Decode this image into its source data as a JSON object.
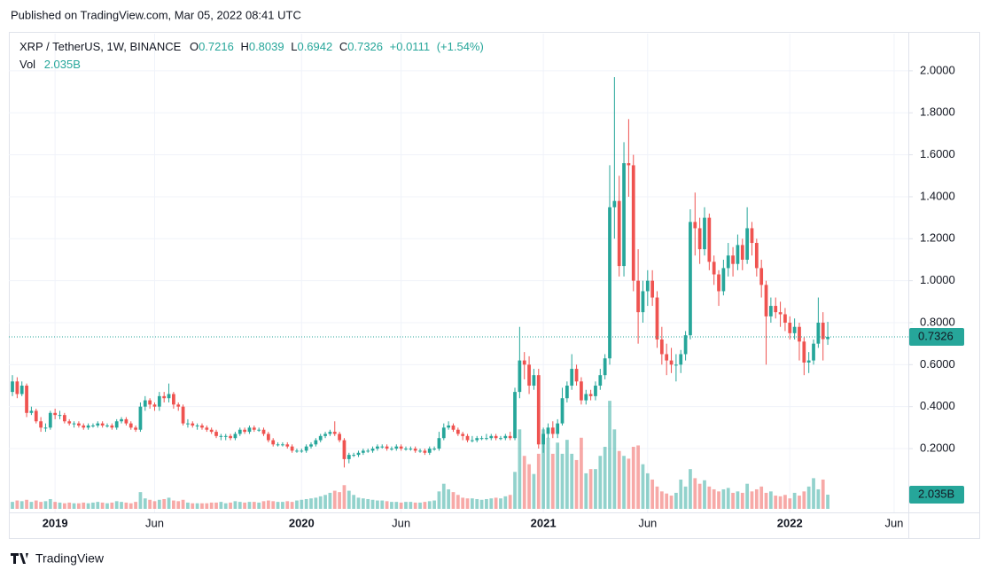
{
  "chart_data": {
    "type": "candlestick",
    "published": "Published on TradingView.com, Mar 05, 2022 08:41 UTC",
    "title": "XRP / TetherUS, 1W, BINANCE",
    "legend_labels": {
      "open": "O",
      "high": "H",
      "low": "L",
      "close": "C",
      "volume": "Vol"
    },
    "change": {
      "value": 0.0111,
      "label": "+0.0111"
    },
    "change_pct": {
      "value": 1.54,
      "label": "(+1.54%)"
    },
    "volume_label": "2.035B",
    "brand": "TradingView",
    "up_color": "#26a69a",
    "down_color": "#ef5350",
    "grid": true,
    "xlim": [
      -0.75,
      189
    ],
    "xticks": [
      {
        "value": 9,
        "label": "2019"
      },
      {
        "value": 30,
        "label": "Jun"
      },
      {
        "value": 61,
        "label": "2020"
      },
      {
        "value": 82,
        "label": "Jun"
      },
      {
        "value": 112,
        "label": "2021"
      },
      {
        "value": 134,
        "label": "Jun"
      },
      {
        "value": 164,
        "label": "2022"
      },
      {
        "value": 186,
        "label": "Jun"
      }
    ],
    "ylim": [
      -0.104,
      2.177
    ],
    "yticks": [
      {
        "value": 0.2,
        "label": "0.2000"
      },
      {
        "value": 0.4,
        "label": "0.4000"
      },
      {
        "value": 0.6,
        "label": "0.6000"
      },
      {
        "value": 0.8,
        "label": "0.8000"
      },
      {
        "value": 1,
        "label": "1.0000"
      },
      {
        "value": 1.2,
        "label": "1.2000"
      },
      {
        "value": 1.4,
        "label": "1.4000"
      },
      {
        "value": 1.6,
        "label": "1.6000"
      },
      {
        "value": 1.8,
        "label": "1.8000"
      },
      {
        "value": 2,
        "label": "2.0000"
      }
    ],
    "vol_ylim": [
      0,
      22
    ],
    "open": [
      0.47,
      0.52,
      0.46,
      0.5,
      0.37,
      0.38,
      0.33,
      0.3,
      0.3,
      0.37,
      0.36,
      0.36,
      0.33,
      0.32,
      0.32,
      0.31,
      0.3,
      0.31,
      0.31,
      0.32,
      0.31,
      0.31,
      0.3,
      0.33,
      0.34,
      0.32,
      0.3,
      0.29,
      0.4,
      0.43,
      0.41,
      0.4,
      0.45,
      0.44,
      0.46,
      0.41,
      0.4,
      0.32,
      0.32,
      0.31,
      0.31,
      0.3,
      0.29,
      0.28,
      0.26,
      0.26,
      0.26,
      0.25,
      0.27,
      0.29,
      0.28,
      0.3,
      0.29,
      0.29,
      0.27,
      0.24,
      0.22,
      0.22,
      0.22,
      0.21,
      0.19,
      0.19,
      0.19,
      0.21,
      0.22,
      0.24,
      0.26,
      0.27,
      0.28,
      0.27,
      0.24,
      0.15,
      0.17,
      0.17,
      0.18,
      0.19,
      0.19,
      0.2,
      0.21,
      0.21,
      0.2,
      0.2,
      0.21,
      0.2,
      0.2,
      0.2,
      0.19,
      0.19,
      0.18,
      0.2,
      0.2,
      0.25,
      0.3,
      0.31,
      0.29,
      0.27,
      0.26,
      0.24,
      0.24,
      0.25,
      0.25,
      0.25,
      0.26,
      0.25,
      0.25,
      0.26,
      0.25,
      0.47,
      0.62,
      0.6,
      0.5,
      0.55,
      0.22,
      0.27,
      0.3,
      0.27,
      0.32,
      0.44,
      0.5,
      0.58,
      0.52,
      0.43,
      0.46,
      0.45,
      0.5,
      0.55,
      0.63,
      1.35,
      1.38,
      1.07,
      1.56,
      1.55,
      1.0,
      0.85,
      0.95,
      1.0,
      0.92,
      0.72,
      0.65,
      0.62,
      0.6,
      0.6,
      0.65,
      0.74,
      1.28,
      1.25,
      1.15,
      1.3,
      1.09,
      1.03,
      0.95,
      1.06,
      1.12,
      1.08,
      1.17,
      1.1,
      1.25,
      1.18,
      1.06,
      0.98,
      0.83,
      0.88,
      0.85,
      0.84,
      0.8,
      0.75,
      0.78,
      0.71,
      0.61,
      0.62,
      0.7,
      0.8,
      0.7216
    ],
    "high": [
      0.55,
      0.54,
      0.52,
      0.51,
      0.4,
      0.39,
      0.35,
      0.32,
      0.38,
      0.39,
      0.38,
      0.37,
      0.34,
      0.33,
      0.33,
      0.32,
      0.32,
      0.32,
      0.33,
      0.33,
      0.32,
      0.32,
      0.34,
      0.35,
      0.35,
      0.33,
      0.31,
      0.42,
      0.45,
      0.44,
      0.42,
      0.47,
      0.47,
      0.51,
      0.47,
      0.42,
      0.41,
      0.34,
      0.33,
      0.32,
      0.32,
      0.31,
      0.3,
      0.29,
      0.27,
      0.27,
      0.27,
      0.28,
      0.3,
      0.3,
      0.31,
      0.31,
      0.3,
      0.3,
      0.28,
      0.25,
      0.23,
      0.23,
      0.23,
      0.22,
      0.2,
      0.2,
      0.22,
      0.23,
      0.25,
      0.27,
      0.28,
      0.29,
      0.33,
      0.28,
      0.25,
      0.18,
      0.18,
      0.19,
      0.2,
      0.2,
      0.21,
      0.22,
      0.22,
      0.22,
      0.21,
      0.22,
      0.22,
      0.21,
      0.21,
      0.21,
      0.2,
      0.2,
      0.21,
      0.21,
      0.28,
      0.32,
      0.33,
      0.32,
      0.3,
      0.28,
      0.27,
      0.26,
      0.26,
      0.26,
      0.27,
      0.27,
      0.27,
      0.26,
      0.27,
      0.28,
      0.49,
      0.78,
      0.66,
      0.64,
      0.58,
      0.58,
      0.3,
      0.32,
      0.33,
      0.34,
      0.49,
      0.52,
      0.65,
      0.6,
      0.54,
      0.48,
      0.48,
      0.52,
      0.58,
      0.65,
      1.55,
      1.97,
      1.5,
      1.66,
      1.77,
      1.6,
      1.15,
      1.0,
      1.05,
      1.05,
      0.95,
      0.78,
      0.7,
      0.68,
      0.65,
      0.67,
      0.76,
      1.34,
      1.42,
      1.3,
      1.35,
      1.32,
      1.12,
      1.05,
      1.1,
      1.18,
      1.16,
      1.22,
      1.2,
      1.35,
      1.28,
      1.2,
      1.1,
      1.0,
      0.92,
      0.92,
      0.9,
      0.87,
      0.83,
      0.82,
      0.8,
      0.73,
      0.66,
      0.72,
      0.92,
      0.85,
      0.8039
    ],
    "low": [
      0.45,
      0.44,
      0.45,
      0.35,
      0.36,
      0.32,
      0.28,
      0.28,
      0.29,
      0.34,
      0.34,
      0.32,
      0.31,
      0.3,
      0.3,
      0.29,
      0.29,
      0.3,
      0.3,
      0.3,
      0.3,
      0.29,
      0.29,
      0.32,
      0.31,
      0.29,
      0.28,
      0.28,
      0.38,
      0.39,
      0.38,
      0.38,
      0.42,
      0.42,
      0.39,
      0.38,
      0.31,
      0.3,
      0.3,
      0.29,
      0.29,
      0.28,
      0.27,
      0.25,
      0.24,
      0.24,
      0.24,
      0.24,
      0.26,
      0.27,
      0.27,
      0.28,
      0.28,
      0.26,
      0.23,
      0.21,
      0.21,
      0.21,
      0.2,
      0.18,
      0.18,
      0.18,
      0.18,
      0.2,
      0.21,
      0.23,
      0.25,
      0.26,
      0.26,
      0.23,
      0.11,
      0.13,
      0.16,
      0.16,
      0.17,
      0.18,
      0.18,
      0.19,
      0.2,
      0.19,
      0.19,
      0.19,
      0.19,
      0.19,
      0.19,
      0.18,
      0.18,
      0.17,
      0.17,
      0.19,
      0.19,
      0.24,
      0.29,
      0.28,
      0.26,
      0.24,
      0.23,
      0.23,
      0.23,
      0.24,
      0.24,
      0.24,
      0.24,
      0.24,
      0.24,
      0.24,
      0.24,
      0.44,
      0.53,
      0.46,
      0.48,
      0.2,
      0.18,
      0.25,
      0.25,
      0.25,
      0.31,
      0.42,
      0.48,
      0.5,
      0.41,
      0.41,
      0.43,
      0.43,
      0.48,
      0.53,
      0.6,
      1.2,
      1.02,
      1.02,
      1.4,
      0.95,
      0.7,
      0.8,
      0.88,
      0.88,
      0.68,
      0.6,
      0.55,
      0.56,
      0.52,
      0.56,
      0.62,
      0.72,
      1.12,
      1.08,
      1.12,
      1.05,
      0.98,
      0.88,
      0.93,
      1.02,
      1.02,
      1.05,
      1.05,
      1.08,
      1.12,
      1.02,
      0.92,
      0.6,
      0.8,
      0.82,
      0.78,
      0.76,
      0.72,
      0.72,
      0.62,
      0.55,
      0.56,
      0.6,
      0.68,
      0.62,
      0.6942
    ],
    "close": [
      0.52,
      0.46,
      0.5,
      0.37,
      0.38,
      0.33,
      0.3,
      0.3,
      0.37,
      0.36,
      0.36,
      0.33,
      0.32,
      0.32,
      0.31,
      0.3,
      0.31,
      0.31,
      0.32,
      0.31,
      0.31,
      0.3,
      0.33,
      0.34,
      0.32,
      0.3,
      0.29,
      0.4,
      0.43,
      0.41,
      0.4,
      0.45,
      0.44,
      0.46,
      0.41,
      0.4,
      0.32,
      0.32,
      0.31,
      0.31,
      0.3,
      0.29,
      0.28,
      0.26,
      0.26,
      0.26,
      0.25,
      0.27,
      0.29,
      0.28,
      0.3,
      0.29,
      0.29,
      0.27,
      0.24,
      0.22,
      0.22,
      0.22,
      0.21,
      0.19,
      0.19,
      0.19,
      0.21,
      0.22,
      0.24,
      0.26,
      0.27,
      0.28,
      0.27,
      0.24,
      0.15,
      0.17,
      0.17,
      0.18,
      0.19,
      0.19,
      0.2,
      0.21,
      0.21,
      0.2,
      0.2,
      0.21,
      0.2,
      0.2,
      0.2,
      0.19,
      0.19,
      0.18,
      0.2,
      0.2,
      0.25,
      0.3,
      0.31,
      0.29,
      0.27,
      0.26,
      0.24,
      0.24,
      0.25,
      0.25,
      0.25,
      0.26,
      0.25,
      0.25,
      0.26,
      0.25,
      0.47,
      0.62,
      0.6,
      0.5,
      0.55,
      0.22,
      0.27,
      0.3,
      0.27,
      0.32,
      0.44,
      0.5,
      0.58,
      0.52,
      0.43,
      0.46,
      0.45,
      0.5,
      0.55,
      0.63,
      1.35,
      1.38,
      1.07,
      1.56,
      1.55,
      1.0,
      0.85,
      0.95,
      1.0,
      0.92,
      0.72,
      0.65,
      0.62,
      0.6,
      0.6,
      0.65,
      0.74,
      1.28,
      1.25,
      1.15,
      1.3,
      1.09,
      1.03,
      0.95,
      1.06,
      1.12,
      1.08,
      1.17,
      1.1,
      1.25,
      1.18,
      1.06,
      0.98,
      0.83,
      0.88,
      0.85,
      0.84,
      0.8,
      0.75,
      0.78,
      0.71,
      0.61,
      0.62,
      0.7,
      0.8,
      0.7216,
      0.7326
    ],
    "volume": [
      1.0,
      1.2,
      1.1,
      1.3,
      1.0,
      1.2,
      1.0,
      1.1,
      1.4,
      1.0,
      0.9,
      0.8,
      0.9,
      0.8,
      0.8,
      0.9,
      0.8,
      0.9,
      1.0,
      0.9,
      0.8,
      0.9,
      1.1,
      1.0,
      0.9,
      0.8,
      1.0,
      2.4,
      1.5,
      1.3,
      1.1,
      1.3,
      1.4,
      1.6,
      1.2,
      1.1,
      1.3,
      0.9,
      0.8,
      0.8,
      0.8,
      0.8,
      0.9,
      0.9,
      1.0,
      0.8,
      0.9,
      1.1,
      1.0,
      0.9,
      1.0,
      1.0,
      0.9,
      1.1,
      1.2,
      1.1,
      1.0,
      1.0,
      1.1,
      1.0,
      1.2,
      1.3,
      1.4,
      1.5,
      1.6,
      1.8,
      2.0,
      2.3,
      2.6,
      2.4,
      3.4,
      2.6,
      2.0,
      1.6,
      1.5,
      1.4,
      1.3,
      1.2,
      1.2,
      1.1,
      1.0,
      1.0,
      0.9,
      1.0,
      1.0,
      0.9,
      0.9,
      1.0,
      1.1,
      1.2,
      2.5,
      3.6,
      2.8,
      2.4,
      2.0,
      1.6,
      1.5,
      1.5,
      1.4,
      1.3,
      1.4,
      1.5,
      1.6,
      1.5,
      1.8,
      2.0,
      5.3,
      11.4,
      7.6,
      6.4,
      5.0,
      7.9,
      11.4,
      10.2,
      7.9,
      9.5,
      7.9,
      9.9,
      7.9,
      7.0,
      10.2,
      5.1,
      5.7,
      5.7,
      7.6,
      8.9,
      15.5,
      11.4,
      8.3,
      7.6,
      7.2,
      8.9,
      9.1,
      6.4,
      5.1,
      4.2,
      3.2,
      2.5,
      2.2,
      1.9,
      2.3,
      4.2,
      3.2,
      5.7,
      4.4,
      3.6,
      4.1,
      3.2,
      2.8,
      2.5,
      2.8,
      3.0,
      2.3,
      2.5,
      2.3,
      3.6,
      2.5,
      2.8,
      3.2,
      2.3,
      2.5,
      1.9,
      1.8,
      2.0,
      1.5,
      2.3,
      1.9,
      2.5,
      3.2,
      4.4,
      2.8,
      4.2,
      2.035
    ]
  }
}
